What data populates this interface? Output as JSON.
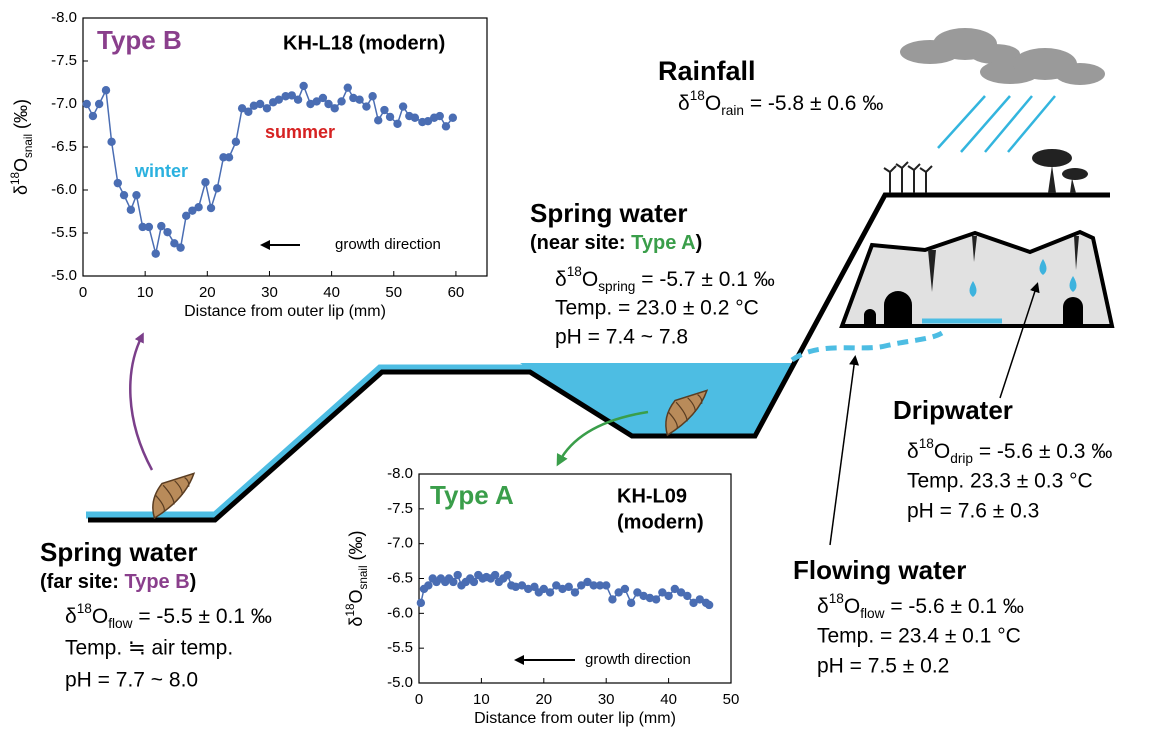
{
  "chart_data": [
    {
      "type": "line",
      "x_label": "Distance from outer lip (mm)",
      "y_label": {
        "symbol": "δ",
        "sup": "18",
        "element": "O",
        "sub": "snail",
        "rest": " (‰)"
      },
      "annotations": [
        {
          "text": "Type B",
          "color": "#8a3f8c"
        },
        {
          "text": "KH-L18 (modern)",
          "color": "#000000"
        },
        {
          "text": "winter",
          "color": "#2bb1df"
        },
        {
          "text": "summer",
          "color": "#d62222"
        },
        {
          "text": "growth direction",
          "color": "#000000"
        }
      ],
      "xlim": [
        0,
        65
      ],
      "xticks": [
        0,
        10,
        20,
        30,
        40,
        50,
        60
      ],
      "ylim": [
        -5,
        -8
      ],
      "yticks": [
        {
          "value": -8,
          "label": "-8.0"
        },
        -7.5,
        {
          "value": -7,
          "label": "-7.0"
        },
        -6.5,
        {
          "value": -6,
          "label": "-6.0"
        },
        -5.5,
        {
          "value": -5,
          "label": "-5.0"
        }
      ],
      "series": [
        {
          "color": "#4a6db3",
          "x": [
            0.6,
            1.6,
            2.6,
            3.7,
            4.6,
            5.6,
            6.6,
            7.7,
            8.6,
            9.6,
            10.6,
            11.7,
            12.6,
            13.6,
            14.7,
            15.7,
            16.6,
            17.6,
            18.6,
            19.7,
            20.6,
            21.6,
            22.6,
            23.5,
            24.6,
            25.6,
            26.6,
            27.5,
            28.5,
            29.6,
            30.6,
            31.5,
            32.6,
            33.6,
            34.6,
            35.5,
            36.6,
            37.6,
            38.6,
            39.5,
            40.5,
            41.6,
            42.6,
            43.5,
            44.5,
            45.6,
            46.6,
            47.5,
            48.5,
            49.4,
            50.6,
            51.5,
            52.5,
            53.4,
            54.6,
            55.5,
            56.5,
            57.4,
            58.4,
            59.5
          ],
          "values": [
            -7.0,
            -6.86,
            -7.0,
            -7.16,
            -6.56,
            -6.08,
            -5.94,
            -5.77,
            -5.94,
            -5.57,
            -5.57,
            -5.26,
            -5.58,
            -5.51,
            -5.38,
            -5.33,
            -5.7,
            -5.76,
            -5.8,
            -6.09,
            -5.79,
            -6.02,
            -6.38,
            -6.38,
            -6.56,
            -6.95,
            -6.91,
            -6.98,
            -7.0,
            -6.95,
            -7.02,
            -7.05,
            -7.09,
            -7.1,
            -7.05,
            -7.21,
            -7.0,
            -7.03,
            -7.07,
            -7.0,
            -6.95,
            -7.03,
            -7.19,
            -7.07,
            -7.05,
            -6.97,
            -7.09,
            -6.81,
            -6.93,
            -6.85,
            -6.77,
            -6.97,
            -6.86,
            -6.84,
            -6.79,
            -6.8,
            -6.84,
            -6.86,
            -6.74,
            -6.84
          ]
        }
      ]
    },
    {
      "type": "line",
      "x_label": "Distance from outer lip (mm)",
      "y_label": {
        "symbol": "δ",
        "sup": "18",
        "element": "O",
        "sub": "snail",
        "rest": " (‰)"
      },
      "annotations": [
        {
          "text": "Type A",
          "color": "#3a9e4a"
        },
        {
          "text": "KH-L09",
          "color": "#000000"
        },
        {
          "text": "(modern)",
          "color": "#000000"
        },
        {
          "text": "growth direction",
          "color": "#000000"
        }
      ],
      "xlim": [
        0,
        50
      ],
      "xticks": [
        0,
        10,
        20,
        30,
        40,
        50
      ],
      "ylim": [
        -5,
        -8
      ],
      "yticks": [
        {
          "value": -8,
          "label": "-8.0"
        },
        -7.5,
        {
          "value": -7,
          "label": "-7.0"
        },
        -6.5,
        {
          "value": -6,
          "label": "-6.0"
        },
        -5.5,
        {
          "value": -5,
          "label": "-5.0"
        }
      ],
      "series": [
        {
          "color": "#4a6db3",
          "x": [
            0.3,
            0.8,
            1.5,
            2.2,
            2.8,
            3.5,
            4.2,
            4.8,
            5.5,
            6.2,
            6.8,
            7.5,
            8.2,
            8.8,
            9.5,
            10.2,
            10.8,
            11.5,
            12.2,
            12.8,
            13.5,
            14.2,
            14.8,
            15.5,
            16.5,
            17.5,
            18.5,
            19.2,
            20,
            21,
            22,
            23,
            24,
            25,
            26,
            27,
            28,
            29,
            30,
            31,
            32,
            33,
            34,
            35,
            36,
            37,
            38,
            39,
            40,
            41,
            42,
            43,
            44,
            45,
            46,
            46.5
          ],
          "values": [
            -6.15,
            -6.35,
            -6.4,
            -6.5,
            -6.45,
            -6.5,
            -6.45,
            -6.5,
            -6.45,
            -6.55,
            -6.4,
            -6.45,
            -6.5,
            -6.45,
            -6.55,
            -6.5,
            -6.52,
            -6.5,
            -6.55,
            -6.45,
            -6.5,
            -6.55,
            -6.4,
            -6.38,
            -6.4,
            -6.35,
            -6.38,
            -6.3,
            -6.35,
            -6.3,
            -6.4,
            -6.35,
            -6.38,
            -6.3,
            -6.4,
            -6.45,
            -6.4,
            -6.4,
            -6.4,
            -6.2,
            -6.3,
            -6.35,
            -6.15,
            -6.3,
            -6.25,
            -6.22,
            -6.2,
            -6.3,
            -6.25,
            -6.35,
            -6.3,
            -6.25,
            -6.15,
            -6.2,
            -6.15,
            -6.12
          ]
        }
      ]
    }
  ],
  "diagram": {
    "rainfall": {
      "title": "Rainfall",
      "isotope": {
        "symbol": "δ",
        "sup": "18",
        "element": "O",
        "sub": "rain",
        "rest": " = -5.8 ± 0.6 ‰"
      }
    },
    "spring_near": {
      "title": "Spring water",
      "subtitle": {
        "open": "(near site: ",
        "highlight": "Type A",
        "close": ")",
        "highlight_color": "#3a9e4a"
      },
      "isotope": {
        "symbol": "δ",
        "sup": "18",
        "element": "O",
        "sub": "spring",
        "rest": " = -5.7 ± 0.1 ‰"
      },
      "temp": "Temp. = 23.0 ± 0.2 °C",
      "ph": "pH = 7.4 ~ 7.8"
    },
    "dripwater": {
      "title": "Dripwater",
      "isotope": {
        "symbol": "δ",
        "sup": "18",
        "element": "O",
        "sub": "drip",
        "rest": " = -5.6 ± 0.3 ‰"
      },
      "temp": "Temp. 23.3 ± 0.3 °C",
      "ph": "pH = 7.6 ± 0.3"
    },
    "flowing": {
      "title": "Flowing water",
      "isotope": {
        "symbol": "δ",
        "sup": "18",
        "element": "O",
        "sub": "flow",
        "rest": " = -5.6 ± 0.1 ‰"
      },
      "temp": "Temp. = 23.4 ± 0.1 °C",
      "ph": "pH = 7.5 ± 0.2"
    },
    "spring_far": {
      "title": "Spring water",
      "subtitle": {
        "open": "(far site: ",
        "highlight": "Type B",
        "close": ")",
        "highlight_color": "#8a3f8c"
      },
      "isotope": {
        "symbol": "δ",
        "sup": "18",
        "element": "O",
        "sub": "flow",
        "rest": " = -5.5 ± 0.1 ‰"
      },
      "temp": "Temp. ≒ air temp.",
      "ph": "pH = 7.7 ~ 8.0"
    }
  }
}
